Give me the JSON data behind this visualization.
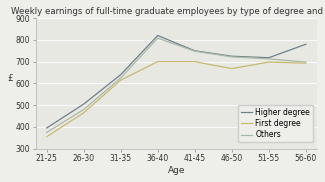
{
  "title": "Weekly earnings of full-time graduate employees by type of degree and age",
  "xlabel": "Age",
  "ylabel": "£",
  "age_groups": [
    "21-25",
    "26-30",
    "31-35",
    "36-40",
    "41-45",
    "46-50",
    "51-55",
    "56-60"
  ],
  "higher_degree": [
    395,
    505,
    640,
    820,
    750,
    725,
    718,
    780
  ],
  "first_degree": [
    355,
    465,
    615,
    700,
    700,
    668,
    698,
    693
  ],
  "others": [
    375,
    480,
    625,
    808,
    748,
    722,
    713,
    698
  ],
  "higher_degree_color": "#6e7f8a",
  "first_degree_color": "#c8b870",
  "others_color": "#aab8a8",
  "ylim": [
    300,
    900
  ],
  "yticks": [
    300,
    400,
    500,
    600,
    700,
    800,
    900
  ],
  "legend_labels": [
    "Higher degree",
    "First degree",
    "Others"
  ],
  "background_color": "#eeeeea",
  "plot_bg_color": "#e8e8e3",
  "grid_color": "#fafafa",
  "title_fontsize": 6.2,
  "axis_fontsize": 6.5,
  "tick_fontsize": 5.5,
  "legend_fontsize": 5.5,
  "linewidth": 0.9
}
